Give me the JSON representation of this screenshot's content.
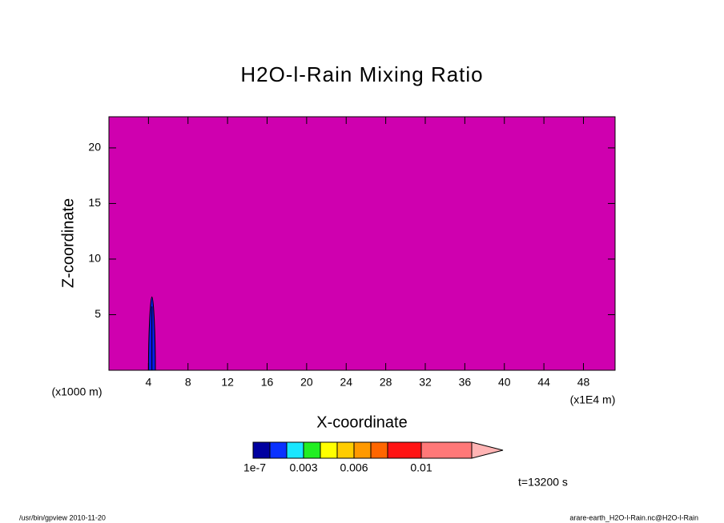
{
  "chart_data": {
    "type": "contour",
    "title": "H2O-l-Rain Mixing Ratio",
    "xlabel": "X-coordinate",
    "ylabel": "Z-coordinate",
    "xunit": "(x1E4 m)",
    "yunit": "(x1000 m)",
    "xlim": [
      0,
      51.2
    ],
    "ylim": [
      0,
      22.8
    ],
    "xticks": [
      4,
      8,
      12,
      16,
      20,
      24,
      28,
      32,
      36,
      40,
      44,
      48
    ],
    "yticks": [
      5,
      10,
      15,
      20
    ],
    "background_color": "#cf00af",
    "regions": [
      {
        "x": 4.35,
        "half_width": 0.35,
        "z_top": 6.6,
        "color": "#0a1ee6"
      }
    ],
    "colorbar": {
      "levels": [
        1e-07,
        0.001,
        0.002,
        0.003,
        0.004,
        0.005,
        0.006,
        0.007,
        0.008,
        0.01
      ],
      "colors": [
        "#0000a0",
        "#0a32ff",
        "#19e6ff",
        "#22ee22",
        "#ffff00",
        "#ffcc00",
        "#ff9900",
        "#ff6600",
        "#ff1414",
        "#ff7878"
      ],
      "extend_color": "#ffb4b4",
      "ticks": [
        {
          "value": 1e-07,
          "label": "1e-7"
        },
        0.003,
        0.006,
        0.01
      ]
    },
    "annotation": "t=13200 s",
    "footer_left": "/usr/bin/gpview  2010-11-20",
    "footer_right": "arare-earth_H2O-l-Rain.nc@H2O-l-Rain"
  }
}
